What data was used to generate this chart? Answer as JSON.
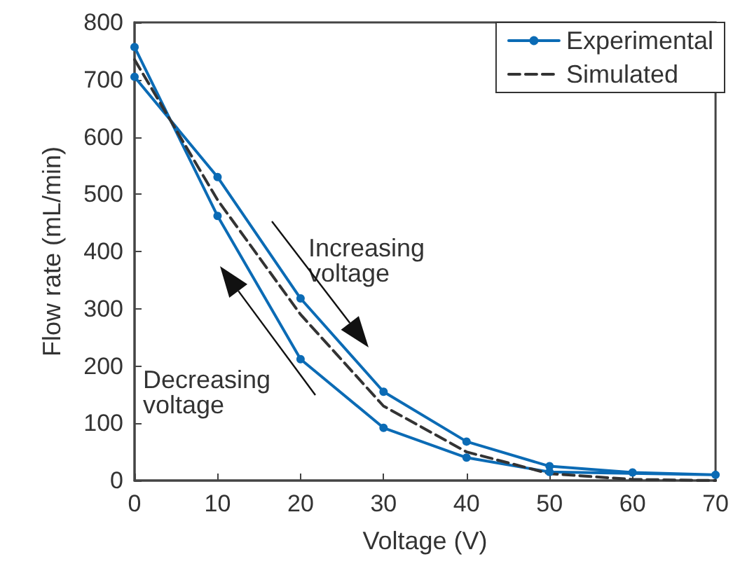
{
  "chart_data": {
    "type": "line",
    "xlabel": "Voltage (V)",
    "ylabel": "Flow rate (mL/min)",
    "series": [
      {
        "name": "Experimental",
        "color": "#0b6bb5",
        "marker": "circle",
        "line_style": "solid",
        "x": [
          0,
          10,
          20,
          30,
          40,
          50,
          60,
          70,
          50,
          40,
          30,
          20,
          10,
          0
        ],
        "values": [
          705,
          530,
          318,
          155,
          68,
          25,
          14,
          10,
          15,
          40,
          92,
          212,
          462,
          757
        ]
      },
      {
        "name": "Simulated",
        "color": "#333333",
        "marker": "none",
        "line_style": "dashed",
        "x": [
          0,
          10,
          20,
          30,
          40,
          50,
          60,
          70
        ],
        "values": [
          735,
          490,
          290,
          130,
          50,
          12,
          2,
          0
        ]
      }
    ],
    "annotations": [
      "Increasing\nvoltage",
      "Decreasing\nvoltage"
    ],
    "xlim": [
      0,
      70
    ],
    "xticks": [
      0,
      10,
      20,
      30,
      40,
      50,
      60,
      70
    ],
    "ylim": [
      0,
      800
    ],
    "yticks": [
      0,
      100,
      200,
      300,
      400,
      500,
      600,
      700,
      800
    ],
    "grid": false,
    "legend": "top right"
  }
}
